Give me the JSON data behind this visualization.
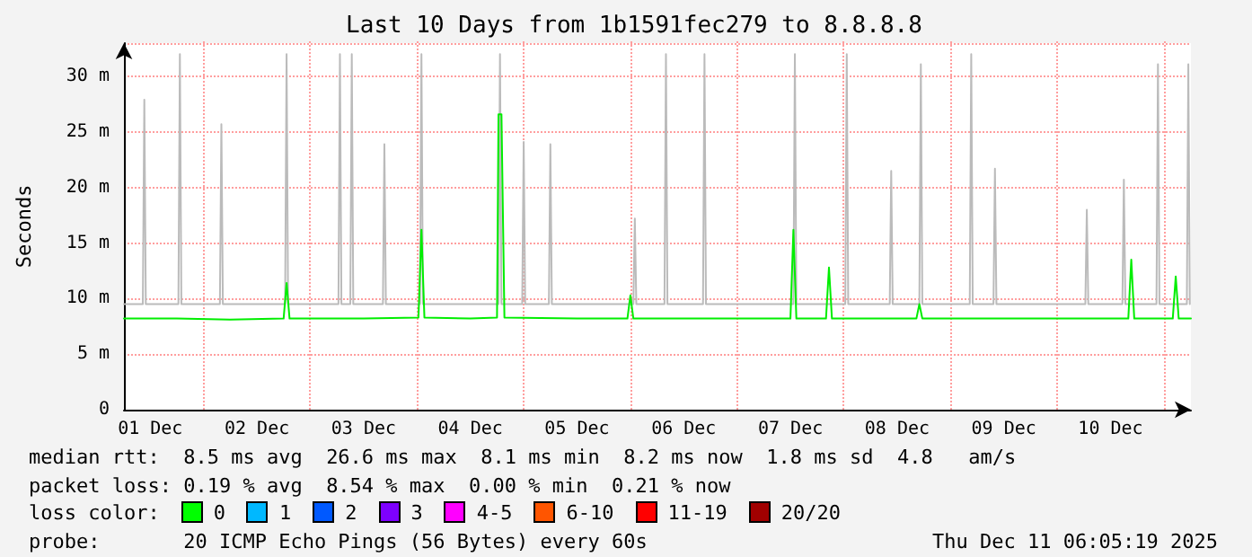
{
  "chart_data": {
    "type": "line",
    "title": "Last 10 Days from 1b1591fec279 to 8.8.8.8",
    "ylabel": "Seconds",
    "xlim": [
      "2025-12-01T06:05",
      "2025-12-11T06:05"
    ],
    "xticks": [
      {
        "value": "2025-12-01T12:00",
        "label": "01 Dec"
      },
      {
        "value": "2025-12-02T00:00",
        "label": null
      },
      {
        "value": "2025-12-02T12:00",
        "label": "02 Dec"
      },
      {
        "value": "2025-12-03T00:00",
        "label": null
      },
      {
        "value": "2025-12-03T12:00",
        "label": "03 Dec"
      },
      {
        "value": "2025-12-04T00:00",
        "label": null
      },
      {
        "value": "2025-12-04T12:00",
        "label": "04 Dec"
      },
      {
        "value": "2025-12-05T00:00",
        "label": null
      },
      {
        "value": "2025-12-05T12:00",
        "label": "05 Dec"
      },
      {
        "value": "2025-12-06T00:00",
        "label": null
      },
      {
        "value": "2025-12-06T12:00",
        "label": "06 Dec"
      },
      {
        "value": "2025-12-07T00:00",
        "label": null
      },
      {
        "value": "2025-12-07T12:00",
        "label": "07 Dec"
      },
      {
        "value": "2025-12-08T00:00",
        "label": null
      },
      {
        "value": "2025-12-08T12:00",
        "label": "08 Dec"
      },
      {
        "value": "2025-12-09T00:00",
        "label": null
      },
      {
        "value": "2025-12-09T12:00",
        "label": "09 Dec"
      },
      {
        "value": "2025-12-10T00:00",
        "label": null
      },
      {
        "value": "2025-12-10T12:00",
        "label": "10 Dec"
      },
      {
        "value": "2025-12-11T00:00",
        "label": null
      }
    ],
    "ylim": [
      0,
      33
    ],
    "yticks": [
      0,
      {
        "value": 5,
        "label": "5 m"
      },
      {
        "value": 10,
        "label": "10 m"
      },
      {
        "value": 15,
        "label": "15 m"
      },
      {
        "value": 20,
        "label": "20 m"
      },
      {
        "value": 25,
        "label": "25 m"
      },
      {
        "value": 30,
        "label": "30 m"
      }
    ],
    "grid": true,
    "marker": "none",
    "series": [
      {
        "color": "#bbbbbb",
        "x": [
          "2025-12-01T06:05",
          "2025-12-01T10:20",
          "2025-12-01T10:40",
          "2025-12-01T11:00",
          "2025-12-01T18:20",
          "2025-12-01T18:40",
          "2025-12-01T19:00",
          "2025-12-02T03:40",
          "2025-12-02T04:00",
          "2025-12-02T04:20",
          "2025-12-02T18:20",
          "2025-12-02T18:40",
          "2025-12-02T19:00",
          "2025-12-03T06:20",
          "2025-12-03T06:40",
          "2025-12-03T07:00",
          "2025-12-03T09:00",
          "2025-12-03T09:20",
          "2025-12-03T09:40",
          "2025-12-03T16:20",
          "2025-12-03T16:40",
          "2025-12-03T17:00",
          "2025-12-04T00:40",
          "2025-12-04T01:00",
          "2025-12-04T01:20",
          "2025-12-04T18:20",
          "2025-12-04T18:40",
          "2025-12-04T19:00",
          "2025-12-04T23:40",
          "2025-12-05T00:00",
          "2025-12-05T00:20",
          "2025-12-05T05:40",
          "2025-12-05T06:00",
          "2025-12-05T06:20",
          "2025-12-06T00:40",
          "2025-12-06T01:00",
          "2025-12-06T01:20",
          "2025-12-06T07:40",
          "2025-12-06T08:00",
          "2025-12-06T08:20",
          "2025-12-06T16:20",
          "2025-12-06T16:40",
          "2025-12-06T17:00",
          "2025-12-07T12:40",
          "2025-12-07T13:00",
          "2025-12-07T13:20",
          "2025-12-08T00:20",
          "2025-12-08T00:40",
          "2025-12-08T01:00",
          "2025-12-08T10:20",
          "2025-12-08T10:40",
          "2025-12-08T11:00",
          "2025-12-08T17:00",
          "2025-12-08T17:20",
          "2025-12-08T17:40",
          "2025-12-09T04:20",
          "2025-12-09T04:40",
          "2025-12-09T05:00",
          "2025-12-09T09:40",
          "2025-12-09T10:00",
          "2025-12-09T10:20",
          "2025-12-10T06:20",
          "2025-12-10T06:40",
          "2025-12-10T07:00",
          "2025-12-10T14:40",
          "2025-12-10T15:00",
          "2025-12-10T15:20",
          "2025-12-10T22:20",
          "2025-12-10T22:40",
          "2025-12-10T23:00",
          "2025-12-11T05:10",
          "2025-12-11T05:30",
          "2025-12-11T05:50"
        ],
        "values": [
          9.5,
          9.5,
          27.9,
          9.5,
          9.5,
          32,
          9.5,
          9.5,
          25.7,
          9.5,
          9.5,
          32,
          9.5,
          9.5,
          32,
          9.5,
          9.5,
          32,
          9.5,
          9.5,
          23.9,
          9.5,
          9.5,
          32,
          9.5,
          9.5,
          32,
          9.5,
          9.5,
          24.1,
          9.5,
          9.5,
          23.9,
          9.5,
          9.5,
          17.2,
          9.5,
          9.5,
          32,
          9.5,
          9.5,
          32,
          9.5,
          9.5,
          32,
          9.5,
          9.5,
          32,
          9.5,
          9.5,
          21.5,
          9.5,
          9.5,
          31.1,
          9.5,
          9.5,
          32,
          9.5,
          9.5,
          21.7,
          9.5,
          9.5,
          18,
          9.5,
          9.5,
          20.7,
          9.5,
          9.5,
          31.1,
          9.5,
          9.5,
          31.1,
          9.5
        ]
      },
      {
        "color": "#00ee00",
        "x": [
          "2025-12-01T06:05",
          "2025-12-01T18:00",
          "2025-12-02T06:00",
          "2025-12-02T18:00",
          "2025-12-02T18:40",
          "2025-12-02T19:20",
          "2025-12-03T12:00",
          "2025-12-04T00:20",
          "2025-12-04T01:00",
          "2025-12-04T01:40",
          "2025-12-04T12:00",
          "2025-12-04T18:00",
          "2025-12-04T18:20",
          "2025-12-04T19:00",
          "2025-12-04T19:40",
          "2025-12-05T12:00",
          "2025-12-05T23:20",
          "2025-12-06T00:00",
          "2025-12-06T00:40",
          "2025-12-06T12:00",
          "2025-12-07T12:00",
          "2025-12-07T12:40",
          "2025-12-07T13:20",
          "2025-12-07T20:00",
          "2025-12-07T20:40",
          "2025-12-07T21:20",
          "2025-12-08T12:00",
          "2025-12-08T16:20",
          "2025-12-08T17:00",
          "2025-12-08T17:40",
          "2025-12-09T12:00",
          "2025-12-10T16:00",
          "2025-12-10T16:40",
          "2025-12-10T17:20",
          "2025-12-11T02:00",
          "2025-12-11T02:40",
          "2025-12-11T03:20",
          "2025-12-11T06:05"
        ],
        "values": [
          8.2,
          8.2,
          8.1,
          8.2,
          11.4,
          8.2,
          8.2,
          8.3,
          16.2,
          8.3,
          8.2,
          8.3,
          26.6,
          26.6,
          8.3,
          8.2,
          8.2,
          10.3,
          8.2,
          8.2,
          8.2,
          16.2,
          8.2,
          8.2,
          12.8,
          8.2,
          8.2,
          8.2,
          9.5,
          8.2,
          8.2,
          8.2,
          13.5,
          8.2,
          8.2,
          12,
          8.2,
          8.2
        ]
      }
    ],
    "annotations": [
      "median rtt:  8.5 ms avg  26.6 ms max  8.1 ms min  8.2 ms now  1.8 ms sd  4.8   am/s",
      "packet loss: 0.19 % avg  8.54 % max  0.00 % min  0.21 % now",
      "loss color:",
      "0",
      "1",
      "2",
      "3",
      "4-5",
      "6-10",
      "11-19",
      "20/20",
      "probe:       20 ICMP Echo Pings (56 Bytes) every 60s",
      "Thu Dec 11 06:05:19 2025"
    ]
  }
}
